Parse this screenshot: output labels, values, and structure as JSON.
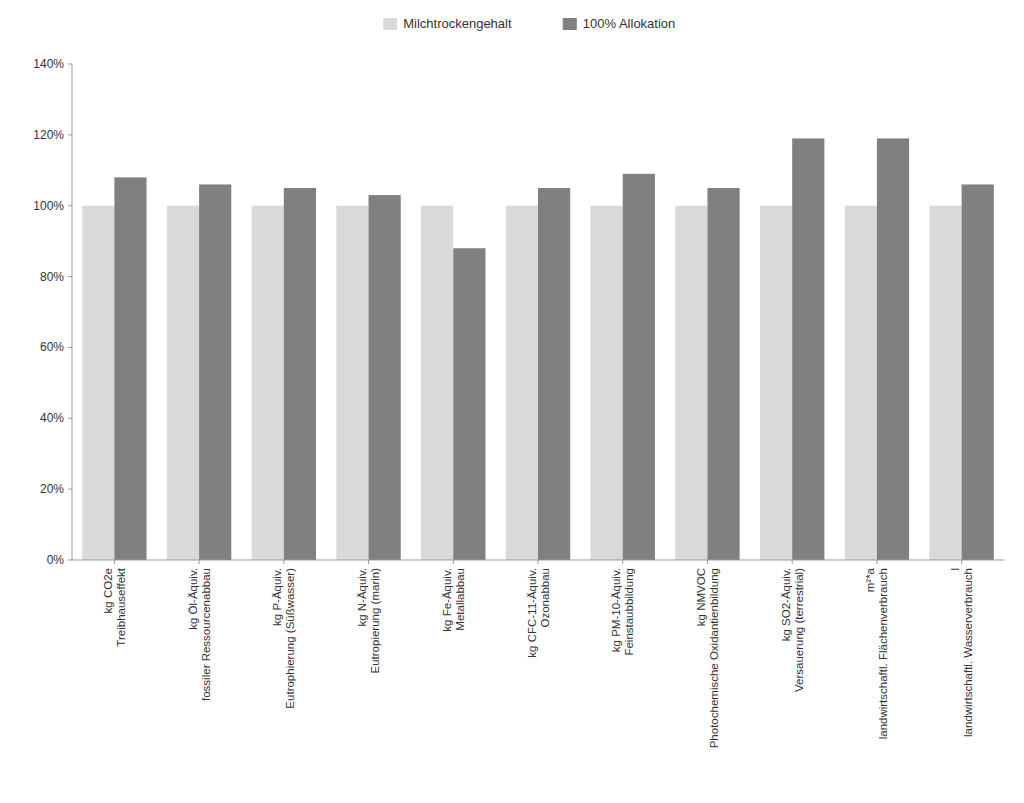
{
  "chart_data": {
    "type": "bar",
    "categories": [
      "kg CO2e\nTreibhauseffekt",
      "kg Öl-Äquiv.\nfossiler Ressourcenabbau",
      "kg P-Äquiv.\nEutrophierung (Süßwasser)",
      "kg N-Äquiv.\nEutropierung (marin)",
      "kg Fe-Äquiv.\nMetallabbau",
      "kg CFC-11-Äquiv.\nOzonabbau",
      "kg PM-10-Äquiv.\nFeinstaubbildung",
      "kg NMVOC\nPhotochemische Oxidantienbildung",
      "kg SO2-Äquiv.\nVersauerung (terrestrial)",
      "m²*a\nlandwirtschaftl. Flächenverbrauch",
      "l\nlandwirtschaftl. Wasserverbrauch"
    ],
    "series": [
      {
        "name": "Milchtrockengehalt",
        "color": "#d9d9d9",
        "values": [
          100,
          100,
          100,
          100,
          100,
          100,
          100,
          100,
          100,
          100,
          100
        ]
      },
      {
        "name": "100% Allokation",
        "color": "#808080",
        "values": [
          108,
          106,
          105,
          103,
          88,
          105,
          109,
          105,
          119,
          119,
          106
        ]
      }
    ],
    "ylim": [
      0,
      140
    ],
    "yticks": [
      {
        "value": 0,
        "label": "0%"
      },
      {
        "value": 20,
        "label": "20%"
      },
      {
        "value": 40,
        "label": "40%"
      },
      {
        "value": 60,
        "label": "60%"
      },
      {
        "value": 80,
        "label": "80%"
      },
      {
        "value": 100,
        "label": "100%"
      },
      {
        "value": 120,
        "label": "120%"
      },
      {
        "value": 140,
        "label": "140%"
      }
    ],
    "grid": false,
    "legend": "top"
  }
}
